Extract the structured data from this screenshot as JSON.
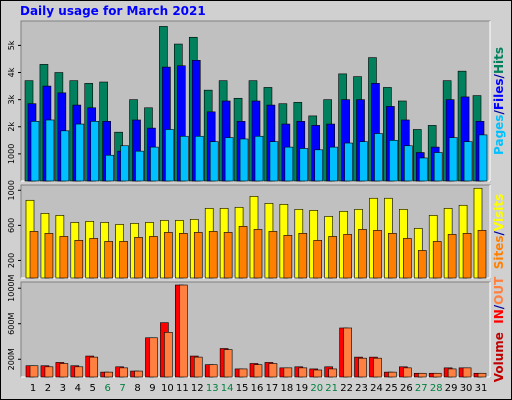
{
  "chart_data": [
    {
      "type": "bar",
      "title": "Daily usage for March 2021",
      "categories": [
        "1",
        "2",
        "3",
        "4",
        "5",
        "6",
        "7",
        "8",
        "9",
        "10",
        "11",
        "12",
        "13",
        "14",
        "15",
        "16",
        "17",
        "18",
        "19",
        "20",
        "21",
        "22",
        "23",
        "24",
        "25",
        "26",
        "27",
        "28",
        "29",
        "30",
        "31"
      ],
      "label_colors": [
        "#000000",
        "#000000",
        "#000000",
        "#000000",
        "#000000",
        "#008040",
        "#008040",
        "#000000",
        "#000000",
        "#000000",
        "#000000",
        "#000000",
        "#008040",
        "#008040",
        "#000000",
        "#000000",
        "#000000",
        "#000000",
        "#000000",
        "#008040",
        "#008040",
        "#000000",
        "#000000",
        "#000000",
        "#000000",
        "#000000",
        "#008040",
        "#008040",
        "#000000",
        "#000000",
        "#000000"
      ],
      "legend_separator": "/",
      "ylim": [
        0,
        5900
      ],
      "yticks": [
        1000,
        {
          "value": 2000,
          "label": "2k"
        },
        {
          "value": 3000,
          "label": "3k"
        },
        {
          "value": 4000,
          "label": "4k"
        },
        {
          "value": 5000,
          "label": "5k"
        }
      ],
      "series": [
        {
          "name": "Hits",
          "color": "#00805c",
          "values": [
            3700,
            4300,
            4000,
            3700,
            3600,
            3650,
            1800,
            3000,
            2700,
            5700,
            5050,
            5300,
            3350,
            3700,
            3050,
            3700,
            3450,
            2850,
            2900,
            2400,
            3000,
            3950,
            3850,
            4550,
            3450,
            2950,
            1900,
            2050,
            3700,
            4050,
            3150
          ]
        },
        {
          "name": "Files",
          "color": "#0000ff",
          "values": [
            2850,
            3500,
            3250,
            2800,
            2700,
            2200,
            1100,
            2250,
            1950,
            4200,
            4250,
            4450,
            2550,
            2950,
            2200,
            2950,
            2800,
            2100,
            2200,
            2050,
            2100,
            3000,
            3000,
            3600,
            2750,
            2250,
            1050,
            1250,
            3000,
            3100,
            2200
          ]
        },
        {
          "name": "Pages",
          "color": "#00c0ff",
          "values": [
            2200,
            2250,
            1850,
            2100,
            2200,
            950,
            1300,
            1100,
            1250,
            1900,
            1650,
            1650,
            1450,
            1600,
            1550,
            1650,
            1450,
            1250,
            1200,
            1150,
            1250,
            1400,
            1450,
            1750,
            1500,
            1300,
            850,
            1050,
            1600,
            1450,
            1700
          ]
        }
      ]
    },
    {
      "type": "bar",
      "ylim": [
        0,
        1060
      ],
      "yticks": [
        200,
        600,
        1000
      ],
      "series": [
        {
          "name": "Visits",
          "color": "#ffff00",
          "values": [
            886,
            737,
            714,
            634,
            646,
            634,
            611,
            623,
            634,
            657,
            657,
            669,
            794,
            794,
            806,
            931,
            851,
            840,
            783,
            771,
            703,
            760,
            783,
            909,
            909,
            783,
            566,
            714,
            794,
            829,
            1023
          ]
        },
        {
          "name": "Sites",
          "color": "#ff8000",
          "values": [
            531,
            509,
            474,
            429,
            451,
            417,
            417,
            463,
            474,
            520,
            509,
            520,
            531,
            520,
            589,
            554,
            531,
            486,
            509,
            429,
            474,
            497,
            554,
            543,
            509,
            451,
            314,
            417,
            497,
            509,
            543
          ]
        }
      ]
    },
    {
      "type": "bar",
      "panel_label": "Volume",
      "panel_label_color": "#c00000",
      "ylim": [
        0,
        1070
      ],
      "yticks": [
        {
          "value": 200,
          "label": "200M"
        },
        {
          "value": 600,
          "label": "600M"
        },
        {
          "value": 1000,
          "label": "1000M"
        }
      ],
      "series": [
        {
          "name": "IN",
          "color": "#ff0000",
          "values": [
            127,
            127,
            164,
            127,
            236,
            55,
            115,
            67,
            442,
            612,
            1036,
            236,
            139,
            321,
            91,
            152,
            164,
            103,
            115,
            91,
            115,
            552,
            224,
            224,
            55,
            115,
            42,
            42,
            103,
            103,
            42
          ]
        },
        {
          "name": "OUT",
          "color": "#ff8040",
          "values": [
            127,
            115,
            152,
            115,
            224,
            55,
            103,
            67,
            442,
            503,
            1036,
            224,
            139,
            309,
            91,
            139,
            152,
            103,
            103,
            79,
            91,
            552,
            212,
            212,
            55,
            103,
            42,
            42,
            91,
            103,
            42
          ]
        }
      ]
    }
  ]
}
